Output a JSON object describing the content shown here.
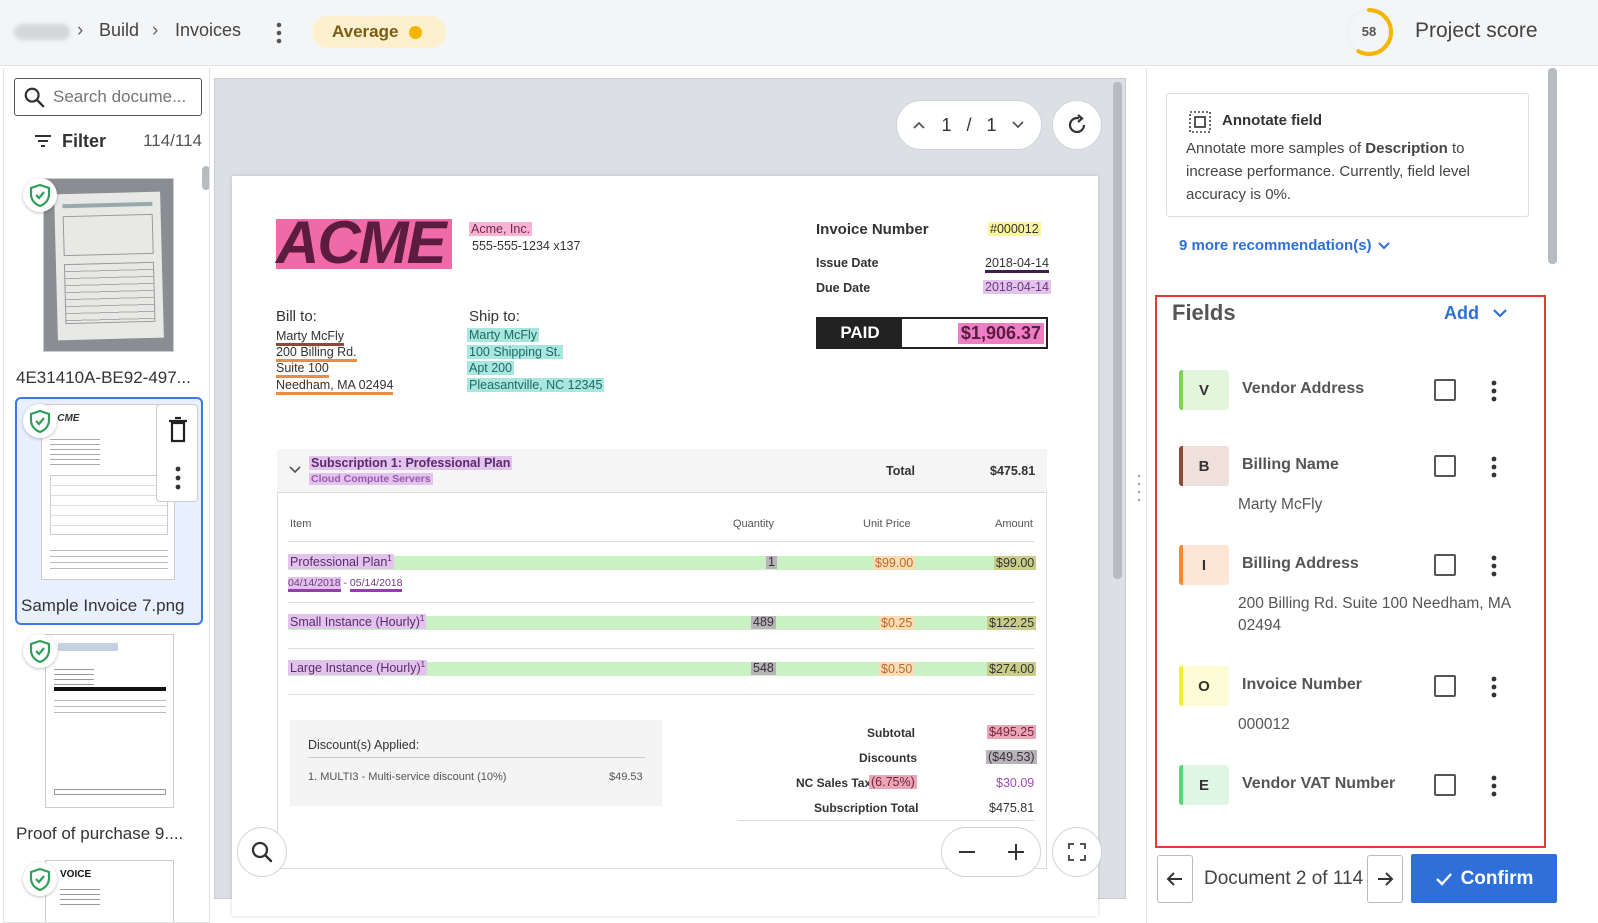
{
  "breadcrumb": {
    "build": "Build",
    "invoices": "Invoices"
  },
  "quality_pill": {
    "label": "Average",
    "dot_color": "#f5b400"
  },
  "project_score": {
    "value": "58",
    "label": "Project score",
    "fraction": 0.58
  },
  "left_panel": {
    "search_placeholder": "Search docume...",
    "filter_label": "Filter",
    "filter_count": "114/114",
    "documents": [
      {
        "title": "4E31410A-BE92-497...",
        "verified": true,
        "selected": false
      },
      {
        "title": "Sample Invoice 7.png",
        "verified": true,
        "selected": true
      },
      {
        "title": "Proof of purchase 9....",
        "verified": true,
        "selected": false
      },
      {
        "title": "",
        "verified": true,
        "selected": false
      }
    ]
  },
  "viewer": {
    "page_current": "1",
    "page_sep": "/",
    "page_total": "1"
  },
  "invoice": {
    "logo": "ACME",
    "company": "Acme, Inc.",
    "phone": "555-555-1234 x137",
    "invoice_number_label": "Invoice Number",
    "invoice_number": "#000012",
    "issue_date_label": "Issue Date",
    "issue_date": "2018-04-14",
    "due_date_label": "Due Date",
    "due_date": "2018-04-14",
    "paid_label": "PAID",
    "paid_amount": "$1,906.37",
    "bill_to_label": "Bill to:",
    "bill_to": [
      "Marty McFly",
      "200 Billing Rd.",
      "Suite 100",
      "Needham, MA 02494"
    ],
    "ship_to_label": "Ship to:",
    "ship_to": [
      "Marty McFly",
      "100 Shipping St.",
      "Apt 200",
      "Pleasantville, NC 12345"
    ],
    "subscription_title": "Subscription 1: Professional Plan",
    "subscription_sub": "Cloud Compute Servers",
    "total_label": "Total",
    "total_value": "$475.81",
    "columns": {
      "item": "Item",
      "quantity": "Quantity",
      "unit_price": "Unit Price",
      "amount": "Amount"
    },
    "items": [
      {
        "name": "Professional Plan",
        "sup": "1",
        "qty": "1",
        "unit": "$99.00",
        "amount": "$99.00",
        "period_start": "04/14/2018",
        "period_sep": " - ",
        "period_end": "05/14/2018"
      },
      {
        "name": "Small Instance (Hourly)",
        "sup": "1",
        "qty": "489",
        "unit": "$0.25",
        "amount": "$122.25"
      },
      {
        "name": "Large Instance (Hourly)",
        "sup": "1",
        "qty": "548",
        "unit": "$0.50",
        "amount": "$274.00"
      }
    ],
    "discount_title": "Discount(s) Applied:",
    "discount_line": "1. MULTI3 - Multi-service discount (10%)",
    "discount_amount": "$49.53",
    "summary": {
      "subtotal_label": "Subtotal",
      "subtotal": "$495.25",
      "discounts_label": "Discounts",
      "discounts": "($49.53)",
      "tax_label": "NC Sales Tax",
      "tax_rate": "(6.75%)",
      "tax": "$30.09",
      "sub_total_label": "Subscription Total",
      "sub_total": "$475.81"
    }
  },
  "recommendation": {
    "title": "Annotate field",
    "text_pre": "Annotate more samples of ",
    "text_bold": "Description",
    "text_post": " to increase performance. Currently, field level accuracy is 0%.",
    "more": "9 more recommendation(s)"
  },
  "fields": {
    "title": "Fields",
    "add_label": "Add",
    "items": [
      {
        "letter": "V",
        "name": "Vendor Address",
        "value": "",
        "color": "#e3f6dc",
        "bar": "#7fd15d"
      },
      {
        "letter": "B",
        "name": "Billing Name",
        "value": "Marty McFly",
        "color": "#efe0dc",
        "bar": "#8a4b3a"
      },
      {
        "letter": "I",
        "name": "Billing Address",
        "value": "200 Billing Rd. Suite 100 Needham, MA 02494",
        "color": "#fde6d6",
        "bar": "#f08a3c"
      },
      {
        "letter": "O",
        "name": "Invoice Number",
        "value": "000012",
        "color": "#fdfcd5",
        "bar": "#f4ec3c"
      },
      {
        "letter": "E",
        "name": "Vendor VAT Number",
        "value": "",
        "color": "#dff6e4",
        "bar": "#5fd27a"
      }
    ]
  },
  "footer": {
    "counter": "Document 2 of 114",
    "confirm_label": "Confirm"
  }
}
